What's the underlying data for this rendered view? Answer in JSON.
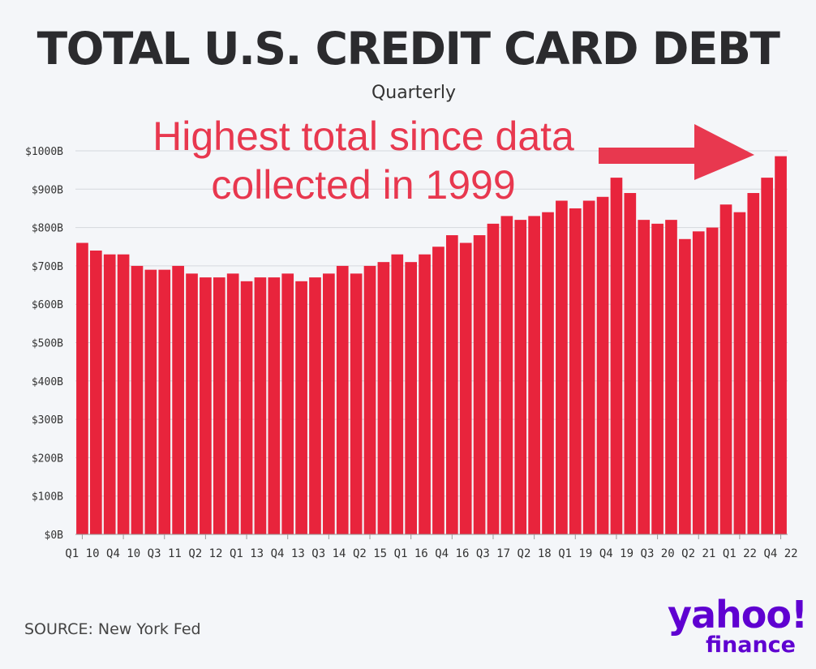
{
  "title": "TOTAL U.S. CREDIT CARD DEBT",
  "subtitle": "Quarterly",
  "annotation": {
    "line1": "Highest total since data",
    "line2": "collected in 1999",
    "color": "#e8384f"
  },
  "source": "SOURCE: New York Fed",
  "logo": {
    "main": "yahoo!",
    "sub": "finance",
    "color": "#5f01d1"
  },
  "chart_data": {
    "type": "bar",
    "bar_color": "#e8243c",
    "ylim": [
      0,
      1000
    ],
    "grid": true,
    "y_ticks": [
      {
        "value": 0,
        "label": "$0B"
      },
      {
        "value": 100,
        "label": "$100B"
      },
      {
        "value": 200,
        "label": "$200B"
      },
      {
        "value": 300,
        "label": "$300B"
      },
      {
        "value": 400,
        "label": "$400B"
      },
      {
        "value": 500,
        "label": "$500B"
      },
      {
        "value": 600,
        "label": "$600B"
      },
      {
        "value": 700,
        "label": "$700B"
      },
      {
        "value": 800,
        "label": "$800B"
      },
      {
        "value": 900,
        "label": "$900B"
      },
      {
        "value": 1000,
        "label": "$1000B"
      }
    ],
    "categories": [
      "Q1 10",
      "Q2 10",
      "Q3 10",
      "Q4 10",
      "Q1 11",
      "Q2 11",
      "Q3 11",
      "Q4 11",
      "Q1 12",
      "Q2 12",
      "Q3 12",
      "Q4 12",
      "Q1 13",
      "Q2 13",
      "Q3 13",
      "Q4 13",
      "Q1 14",
      "Q2 14",
      "Q3 14",
      "Q4 14",
      "Q1 15",
      "Q2 15",
      "Q3 15",
      "Q4 15",
      "Q1 16",
      "Q2 16",
      "Q3 16",
      "Q4 16",
      "Q1 17",
      "Q2 17",
      "Q3 17",
      "Q4 17",
      "Q1 18",
      "Q2 18",
      "Q3 18",
      "Q4 18",
      "Q1 19",
      "Q2 19",
      "Q3 19",
      "Q4 19",
      "Q1 20",
      "Q2 20",
      "Q3 20",
      "Q4 20",
      "Q1 21",
      "Q2 21",
      "Q3 21",
      "Q4 21",
      "Q1 22",
      "Q2 22",
      "Q3 22",
      "Q4 22"
    ],
    "values": [
      760,
      740,
      730,
      730,
      700,
      690,
      690,
      700,
      680,
      670,
      670,
      680,
      660,
      670,
      670,
      680,
      660,
      670,
      680,
      700,
      680,
      700,
      710,
      730,
      710,
      730,
      750,
      780,
      760,
      780,
      810,
      830,
      820,
      830,
      840,
      870,
      850,
      870,
      880,
      930,
      890,
      820,
      810,
      820,
      770,
      790,
      800,
      860,
      840,
      890,
      930,
      986
    ],
    "x_labels": [
      {
        "index": 0,
        "label": "Q1 10"
      },
      {
        "index": 3,
        "label": "Q4 10"
      },
      {
        "index": 6,
        "label": "Q3 11"
      },
      {
        "index": 9,
        "label": "Q2 12"
      },
      {
        "index": 12,
        "label": "Q1 13"
      },
      {
        "index": 15,
        "label": "Q4 13"
      },
      {
        "index": 18,
        "label": "Q3 14"
      },
      {
        "index": 21,
        "label": "Q2 15"
      },
      {
        "index": 24,
        "label": "Q1 16"
      },
      {
        "index": 27,
        "label": "Q4 16"
      },
      {
        "index": 30,
        "label": "Q3 17"
      },
      {
        "index": 33,
        "label": "Q2 18"
      },
      {
        "index": 36,
        "label": "Q1 19"
      },
      {
        "index": 39,
        "label": "Q4 19"
      },
      {
        "index": 42,
        "label": "Q3 20"
      },
      {
        "index": 45,
        "label": "Q2 21"
      },
      {
        "index": 48,
        "label": "Q1 22"
      },
      {
        "index": 51,
        "label": "Q4 22"
      }
    ]
  }
}
